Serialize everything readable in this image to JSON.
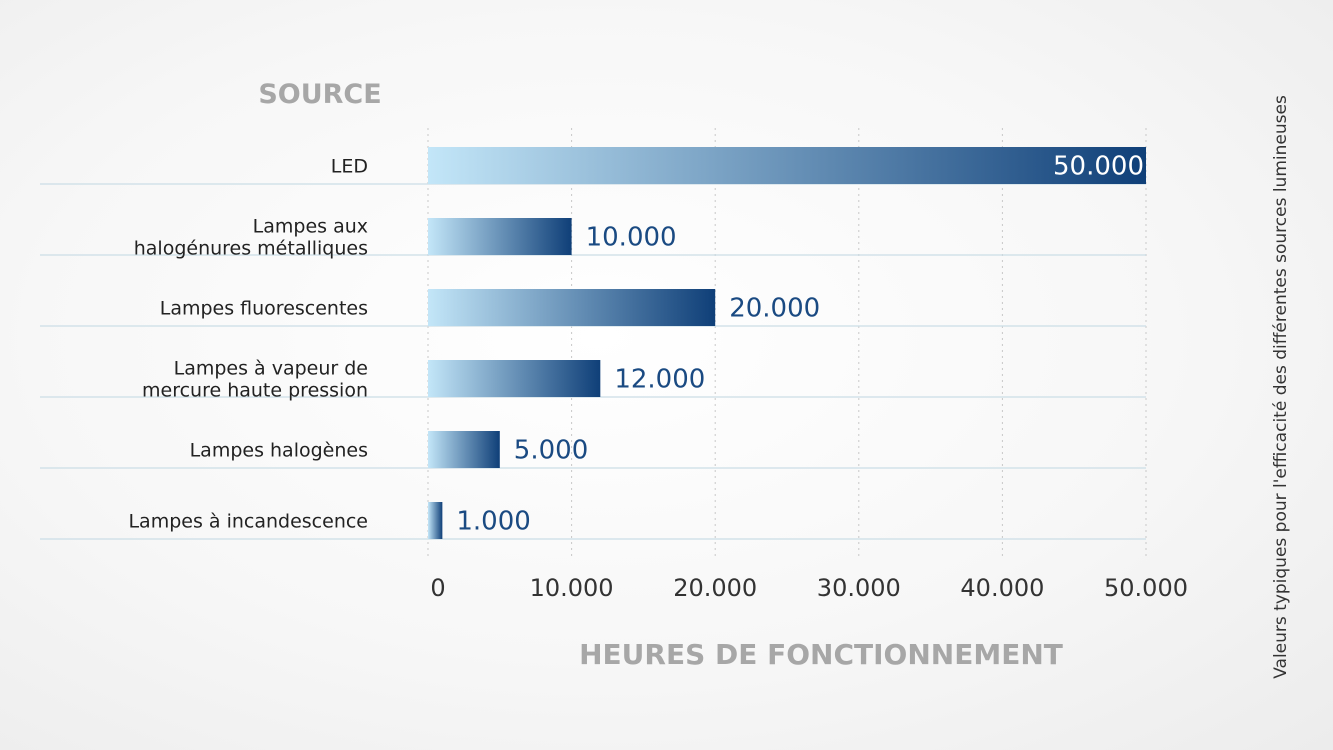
{
  "chart_data": {
    "type": "bar",
    "orientation": "horizontal",
    "categories": [
      [
        "LED"
      ],
      [
        "Lampes aux",
        "halogénures métalliques"
      ],
      [
        "Lampes fluorescentes"
      ],
      [
        "Lampes à vapeur de",
        "mercure haute pression"
      ],
      [
        "Lampes halogènes"
      ],
      [
        "Lampes à incandescence"
      ]
    ],
    "values": [
      50000,
      10000,
      20000,
      12000,
      5000,
      1000
    ],
    "value_labels": [
      "50.000",
      "10.000",
      "20.000",
      "12.000",
      "5.000",
      "1.000"
    ],
    "xlim": [
      0,
      50000
    ],
    "xticks": [
      0,
      10000,
      20000,
      30000,
      40000,
      50000
    ],
    "xtick_labels": [
      "0",
      "10.000",
      "20.000",
      "30.000",
      "40.000",
      "50.000"
    ],
    "ylabel": "SOURCE",
    "xlabel": "HEURES DE FONCTIONNEMENT",
    "side_note": "Valeurs typiques pour l'efficacité des différentes sources lumineuses",
    "grid": "vertical dotted",
    "colors": {
      "bar_start": "#c3e6f8",
      "bar_end": "#0f3f78",
      "value_label": "#1a4a82",
      "value_label_inside": "#ffffff",
      "row_line": "#cbdde6",
      "grid": "#c8c8c8",
      "axis_title": "#a7a7a7"
    }
  }
}
